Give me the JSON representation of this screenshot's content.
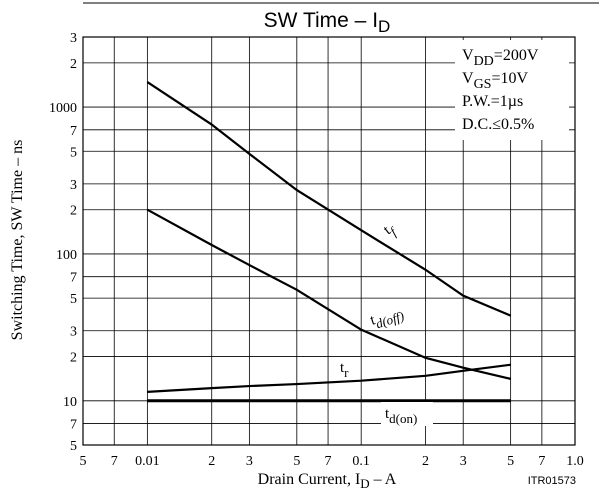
{
  "chart_data": {
    "type": "line",
    "log_x": true,
    "log_y": true,
    "grid": true,
    "title": "SW Time  –  I",
    "title_sub": "D",
    "x_label": "Drain Current, I",
    "x_label_sub": "D",
    "x_label_unit": "  –  A",
    "y_label": "Switching Time, SW Time  –  ns",
    "code": "ITR01573",
    "conditions": [
      {
        "text": "V",
        "sub": "DD",
        "rest": "=200V"
      },
      {
        "text": "V",
        "sub": "GS",
        "rest": "=10V"
      },
      {
        "text": "P.W.=1µs"
      },
      {
        "text": "D.C.≤0.5%"
      }
    ],
    "xlim": [
      0.005,
      1
    ],
    "xticks": [
      {
        "value": 0.005,
        "label": "5"
      },
      {
        "value": 0.007,
        "label": "7"
      },
      0.01,
      {
        "value": 0.02,
        "label": "2"
      },
      {
        "value": 0.03,
        "label": "3"
      },
      {
        "value": 0.05,
        "label": "5"
      },
      {
        "value": 0.07,
        "label": "7"
      },
      0.1,
      {
        "value": 0.2,
        "label": "2"
      },
      {
        "value": 0.3,
        "label": "3"
      },
      {
        "value": 0.5,
        "label": "5"
      },
      {
        "value": 0.7,
        "label": "7"
      },
      {
        "value": 1,
        "label": "1.0"
      }
    ],
    "ylim": [
      5,
      3000
    ],
    "yticks": [
      5,
      7,
      10,
      {
        "value": 20,
        "label": "2"
      },
      {
        "value": 30,
        "label": "3"
      },
      {
        "value": 50,
        "label": "5"
      },
      {
        "value": 70,
        "label": "7"
      },
      100,
      {
        "value": 200,
        "label": "2"
      },
      {
        "value": 300,
        "label": "3"
      },
      {
        "value": 500,
        "label": "5"
      },
      {
        "value": 700,
        "label": "7"
      },
      1000,
      {
        "value": 2000,
        "label": "2"
      },
      {
        "value": 3000,
        "label": "3"
      }
    ],
    "x": [
      0.01,
      0.02,
      0.03,
      0.05,
      0.1,
      0.2,
      0.3,
      0.5
    ],
    "series": [
      {
        "name": "t",
        "name_sub": "f",
        "color": "#000000",
        "values": [
          1480,
          760,
          480,
          272,
          145,
          78,
          52,
          38
        ]
      },
      {
        "name": "t",
        "name_sub": "d(off)",
        "color": "#000000",
        "values": [
          200,
          115,
          84,
          57,
          30.5,
          19.6,
          16.8,
          14.1
        ]
      },
      {
        "name": "t",
        "name_sub": "r",
        "color": "#000000",
        "values": [
          11.5,
          12.2,
          12.6,
          13,
          13.7,
          14.8,
          16,
          17.6
        ]
      },
      {
        "name": "t",
        "name_sub": "d(on)",
        "color": "#000000",
        "values": [
          10,
          10,
          10,
          10,
          10,
          10,
          10,
          10
        ]
      }
    ]
  }
}
